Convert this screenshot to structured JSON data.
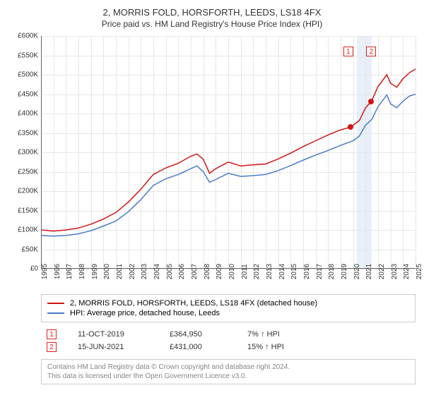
{
  "title": "2, MORRIS FOLD, HORSFORTH, LEEDS, LS18 4FX",
  "subtitle": "Price paid vs. HM Land Registry's House Price Index (HPI)",
  "chart": {
    "type": "line",
    "background_color": "#ffffff",
    "grid_color": "#e6e6e6",
    "axis_color": "#666666",
    "ylim": [
      0,
      600000
    ],
    "ytick_step": 50000,
    "ytick_labels": [
      "£0",
      "£50K",
      "£100K",
      "£150K",
      "£200K",
      "£250K",
      "£300K",
      "£350K",
      "£400K",
      "£450K",
      "£500K",
      "£550K",
      "£600K"
    ],
    "xlim": [
      1995,
      2025
    ],
    "xtick_step": 1,
    "xtick_labels": [
      "1995",
      "1996",
      "1997",
      "1998",
      "1999",
      "2000",
      "2001",
      "2002",
      "2003",
      "2004",
      "2005",
      "2006",
      "2007",
      "2008",
      "2009",
      "2010",
      "2011",
      "2012",
      "2013",
      "2014",
      "2015",
      "2016",
      "2017",
      "2018",
      "2019",
      "2020",
      "2021",
      "2022",
      "2023",
      "2024",
      "2025"
    ],
    "highlight_band": {
      "x_start": 2020.3,
      "x_end": 2021.5,
      "color": "rgba(200,215,240,0.4)"
    },
    "series": [
      {
        "name": "property",
        "label": "2, MORRIS FOLD, HORSFORTH, LEEDS, LS18 4FX (detached house)",
        "color": "#d01515",
        "line_width": 1.5,
        "points": [
          [
            1995,
            100000
          ],
          [
            1996,
            97000
          ],
          [
            1997,
            100000
          ],
          [
            1998,
            105000
          ],
          [
            1999,
            115000
          ],
          [
            2000,
            128000
          ],
          [
            2001,
            145000
          ],
          [
            2002,
            172000
          ],
          [
            2003,
            205000
          ],
          [
            2004,
            243000
          ],
          [
            2005,
            260000
          ],
          [
            2006,
            272000
          ],
          [
            2007,
            290000
          ],
          [
            2007.5,
            296000
          ],
          [
            2008,
            282000
          ],
          [
            2008.5,
            246000
          ],
          [
            2009,
            258000
          ],
          [
            2010,
            275000
          ],
          [
            2011,
            265000
          ],
          [
            2012,
            268000
          ],
          [
            2013,
            270000
          ],
          [
            2014,
            283000
          ],
          [
            2015,
            298000
          ],
          [
            2016,
            315000
          ],
          [
            2017,
            330000
          ],
          [
            2018,
            345000
          ],
          [
            2019,
            358000
          ],
          [
            2019.78,
            364950
          ],
          [
            2020,
            370000
          ],
          [
            2020.5,
            382000
          ],
          [
            2021,
            415000
          ],
          [
            2021.46,
            431000
          ],
          [
            2022,
            470000
          ],
          [
            2022.7,
            500000
          ],
          [
            2023,
            478000
          ],
          [
            2023.5,
            468000
          ],
          [
            2024,
            490000
          ],
          [
            2024.5,
            505000
          ],
          [
            2025,
            515000
          ]
        ]
      },
      {
        "name": "hpi",
        "label": "HPI: Average price, detached house, Leeds",
        "color": "#4a7bc8",
        "line_width": 1.5,
        "points": [
          [
            1995,
            86000
          ],
          [
            1996,
            84000
          ],
          [
            1997,
            86000
          ],
          [
            1998,
            90000
          ],
          [
            1999,
            98000
          ],
          [
            2000,
            110000
          ],
          [
            2001,
            123000
          ],
          [
            2002,
            147000
          ],
          [
            2003,
            178000
          ],
          [
            2004,
            215000
          ],
          [
            2005,
            232000
          ],
          [
            2006,
            243000
          ],
          [
            2007,
            258000
          ],
          [
            2007.5,
            265000
          ],
          [
            2008,
            250000
          ],
          [
            2008.5,
            223000
          ],
          [
            2009,
            230000
          ],
          [
            2010,
            246000
          ],
          [
            2011,
            238000
          ],
          [
            2012,
            240000
          ],
          [
            2013,
            243000
          ],
          [
            2014,
            253000
          ],
          [
            2015,
            266000
          ],
          [
            2016,
            280000
          ],
          [
            2017,
            293000
          ],
          [
            2018,
            305000
          ],
          [
            2019,
            318000
          ],
          [
            2020,
            330000
          ],
          [
            2020.5,
            342000
          ],
          [
            2021,
            370000
          ],
          [
            2021.5,
            385000
          ],
          [
            2022,
            418000
          ],
          [
            2022.7,
            448000
          ],
          [
            2023,
            425000
          ],
          [
            2023.5,
            415000
          ],
          [
            2024,
            432000
          ],
          [
            2024.5,
            445000
          ],
          [
            2025,
            450000
          ]
        ]
      }
    ],
    "sale_markers": [
      {
        "n": "1",
        "x": 2019.78,
        "y": 364950,
        "dot_color": "#d01515",
        "box_xoffset": -10,
        "box_y": 15
      },
      {
        "n": "2",
        "x": 2021.46,
        "y": 431000,
        "dot_color": "#d01515",
        "box_xoffset": -7,
        "box_y": 15
      }
    ]
  },
  "legend": {
    "items": [
      {
        "color": "#d01515",
        "label": "2, MORRIS FOLD, HORSFORTH, LEEDS, LS18 4FX (detached house)"
      },
      {
        "color": "#4a7bc8",
        "label": "HPI: Average price, detached house, Leeds"
      }
    ]
  },
  "sales": [
    {
      "n": "1",
      "date": "11-OCT-2019",
      "price": "£364,950",
      "pct": "7% ↑ HPI"
    },
    {
      "n": "2",
      "date": "15-JUN-2021",
      "price": "£431,000",
      "pct": "15% ↑ HPI"
    }
  ],
  "footer_line1": "Contains HM Land Registry data © Crown copyright and database right 2024.",
  "footer_line2": "This data is licensed under the Open Government Licence v3.0."
}
